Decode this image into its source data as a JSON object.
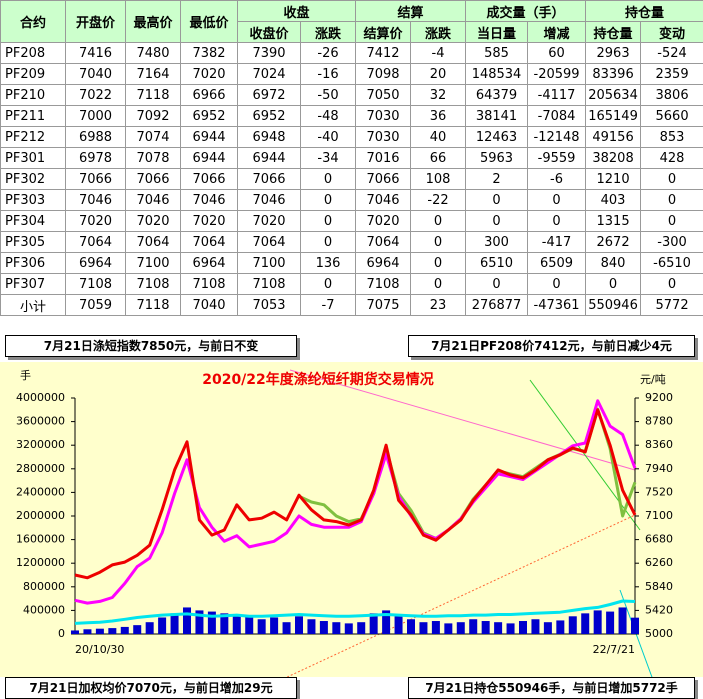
{
  "table": {
    "group_headers": [
      "收盘",
      "结算",
      "成交量（手）",
      "持仓量"
    ],
    "columns": [
      "合约",
      "开盘价",
      "最高价",
      "最低价",
      "收盘价",
      "涨跌",
      "结算价",
      "涨跌",
      "当日量",
      "增减",
      "持仓量",
      "变动"
    ],
    "rows": [
      [
        "PF208",
        7416,
        7480,
        7382,
        7390,
        -26,
        7412,
        -4,
        585,
        60,
        2963,
        -524
      ],
      [
        "PF209",
        7040,
        7164,
        7020,
        7024,
        -16,
        7098,
        20,
        148534,
        -20599,
        83396,
        2359
      ],
      [
        "PF210",
        7022,
        7118,
        6966,
        6972,
        -50,
        7050,
        32,
        64379,
        -4117,
        205634,
        3806
      ],
      [
        "PF211",
        7000,
        7092,
        6952,
        6952,
        -48,
        7030,
        36,
        38141,
        -7084,
        165149,
        5660
      ],
      [
        "PF212",
        6988,
        7074,
        6944,
        6948,
        -40,
        7030,
        40,
        12463,
        -12148,
        49156,
        853
      ],
      [
        "PF301",
        6978,
        7078,
        6944,
        6944,
        -34,
        7016,
        66,
        5963,
        -9559,
        38208,
        428
      ],
      [
        "PF302",
        7066,
        7066,
        7066,
        7066,
        0,
        7066,
        108,
        2,
        -6,
        1210,
        0
      ],
      [
        "PF303",
        7046,
        7046,
        7046,
        7046,
        0,
        7046,
        -22,
        0,
        0,
        403,
        0
      ],
      [
        "PF304",
        7020,
        7020,
        7020,
        7020,
        0,
        7020,
        0,
        0,
        0,
        1315,
        0
      ],
      [
        "PF305",
        7064,
        7064,
        7064,
        7064,
        0,
        7064,
        0,
        300,
        -417,
        2672,
        -300
      ],
      [
        "PF306",
        6964,
        7100,
        6964,
        7100,
        136,
        6964,
        0,
        6510,
        6509,
        840,
        -6510
      ],
      [
        "PF307",
        7108,
        7108,
        7108,
        7108,
        0,
        7108,
        0,
        0,
        0,
        0,
        0
      ],
      [
        "小计",
        7059,
        7118,
        7040,
        7053,
        -7,
        7075,
        23,
        276877,
        -47361,
        550946,
        5772
      ]
    ]
  },
  "notes": [
    "7月21日涤短指数7850元，与前日不变",
    "7月21日PF208价7412元，与前日减少4元",
    "7月21日加权均价7070元，与前日增加29元",
    "7月21日持仓550946手，与前日增加5772手"
  ],
  "chart_data": {
    "type": "line",
    "title": "2020/22年度涤纶短纤期货交易情况",
    "y_unit": "手",
    "y2_unit": "元/吨",
    "categories": [
      "20/10/30",
      null,
      null,
      null,
      null,
      null,
      null,
      null,
      null,
      null,
      null,
      null,
      null,
      null,
      null,
      null,
      null,
      null,
      null,
      null,
      null,
      null,
      null,
      null,
      null,
      null,
      null,
      null,
      null,
      null,
      null,
      null,
      null,
      null,
      null,
      null,
      null,
      null,
      null,
      null,
      null,
      null,
      null,
      null,
      null,
      "22/7/21"
    ],
    "ylim": [
      0,
      4000000
    ],
    "yticks": [
      0,
      400000,
      800000,
      1200000,
      1600000,
      2000000,
      2400000,
      2800000,
      3200000,
      3600000,
      4000000
    ],
    "y2lim": [
      5000,
      9200
    ],
    "y2ticks": [
      5000,
      5420,
      5840,
      6260,
      6680,
      7100,
      7520,
      7940,
      8360,
      8780,
      9200
    ],
    "series": [
      {
        "type": "bar",
        "color": "#0000cc",
        "values": [
          60000,
          80000,
          90000,
          100000,
          120000,
          150000,
          200000,
          280000,
          350000,
          450000,
          400000,
          380000,
          350000,
          300000,
          320000,
          250000,
          280000,
          200000,
          300000,
          250000,
          220000,
          200000,
          180000,
          200000,
          350000,
          400000,
          300000,
          250000,
          200000,
          220000,
          180000,
          200000,
          250000,
          220000,
          200000,
          180000,
          220000,
          250000,
          200000,
          230000,
          300000,
          350000,
          400000,
          380000,
          450000,
          276877
        ]
      },
      {
        "color": "#00e5ee",
        "values": [
          180000,
          190000,
          200000,
          220000,
          250000,
          280000,
          300000,
          320000,
          330000,
          340000,
          320000,
          300000,
          310000,
          320000,
          300000,
          300000,
          310000,
          320000,
          330000,
          320000,
          310000,
          300000,
          300000,
          310000,
          320000,
          330000,
          320000,
          310000,
          300000,
          300000,
          310000,
          310000,
          320000,
          320000,
          330000,
          330000,
          340000,
          350000,
          360000,
          370000,
          400000,
          430000,
          450000,
          500000,
          560000,
          550946
        ]
      },
      {
        "color": "#80c040",
        "axis": "y2",
        "values": [
          null,
          null,
          null,
          null,
          null,
          null,
          null,
          null,
          null,
          null,
          null,
          null,
          null,
          null,
          null,
          null,
          null,
          null,
          7450,
          7350,
          7300,
          7100,
          7000,
          7050,
          7500,
          8300,
          7500,
          7200,
          6800,
          6700,
          6850,
          7050,
          7400,
          7650,
          7900,
          7850,
          7800,
          7950,
          8100,
          8200,
          8300,
          8250,
          9000,
          8300,
          7100,
          7700
        ]
      },
      {
        "color": "#ff00ff",
        "axis": "y2",
        "values": [
          5600,
          5550,
          5580,
          5650,
          5900,
          6200,
          6350,
          6800,
          7500,
          8100,
          7250,
          6900,
          6650,
          6750,
          6550,
          6600,
          6650,
          6800,
          7100,
          6950,
          6900,
          6900,
          6900,
          7000,
          7500,
          8200,
          7450,
          7100,
          6780,
          6700,
          6850,
          7050,
          7350,
          7600,
          7850,
          7800,
          7750,
          7900,
          8050,
          8200,
          8350,
          8400,
          9150,
          8700,
          8550,
          7950
        ]
      },
      {
        "color": "#ee0000",
        "axis": "y2",
        "values": [
          6050,
          6000,
          6100,
          6230,
          6280,
          6400,
          6580,
          7210,
          7920,
          8420,
          7030,
          6760,
          6850,
          7300,
          7030,
          7060,
          7170,
          7030,
          7470,
          7210,
          7030,
          7000,
          6940,
          7030,
          7560,
          8360,
          7380,
          7120,
          6760,
          6670,
          6850,
          7030,
          7380,
          7650,
          7920,
          7830,
          7780,
          7920,
          8100,
          8190,
          8310,
          8240,
          8990,
          8360,
          7560,
          7120
        ]
      }
    ]
  }
}
